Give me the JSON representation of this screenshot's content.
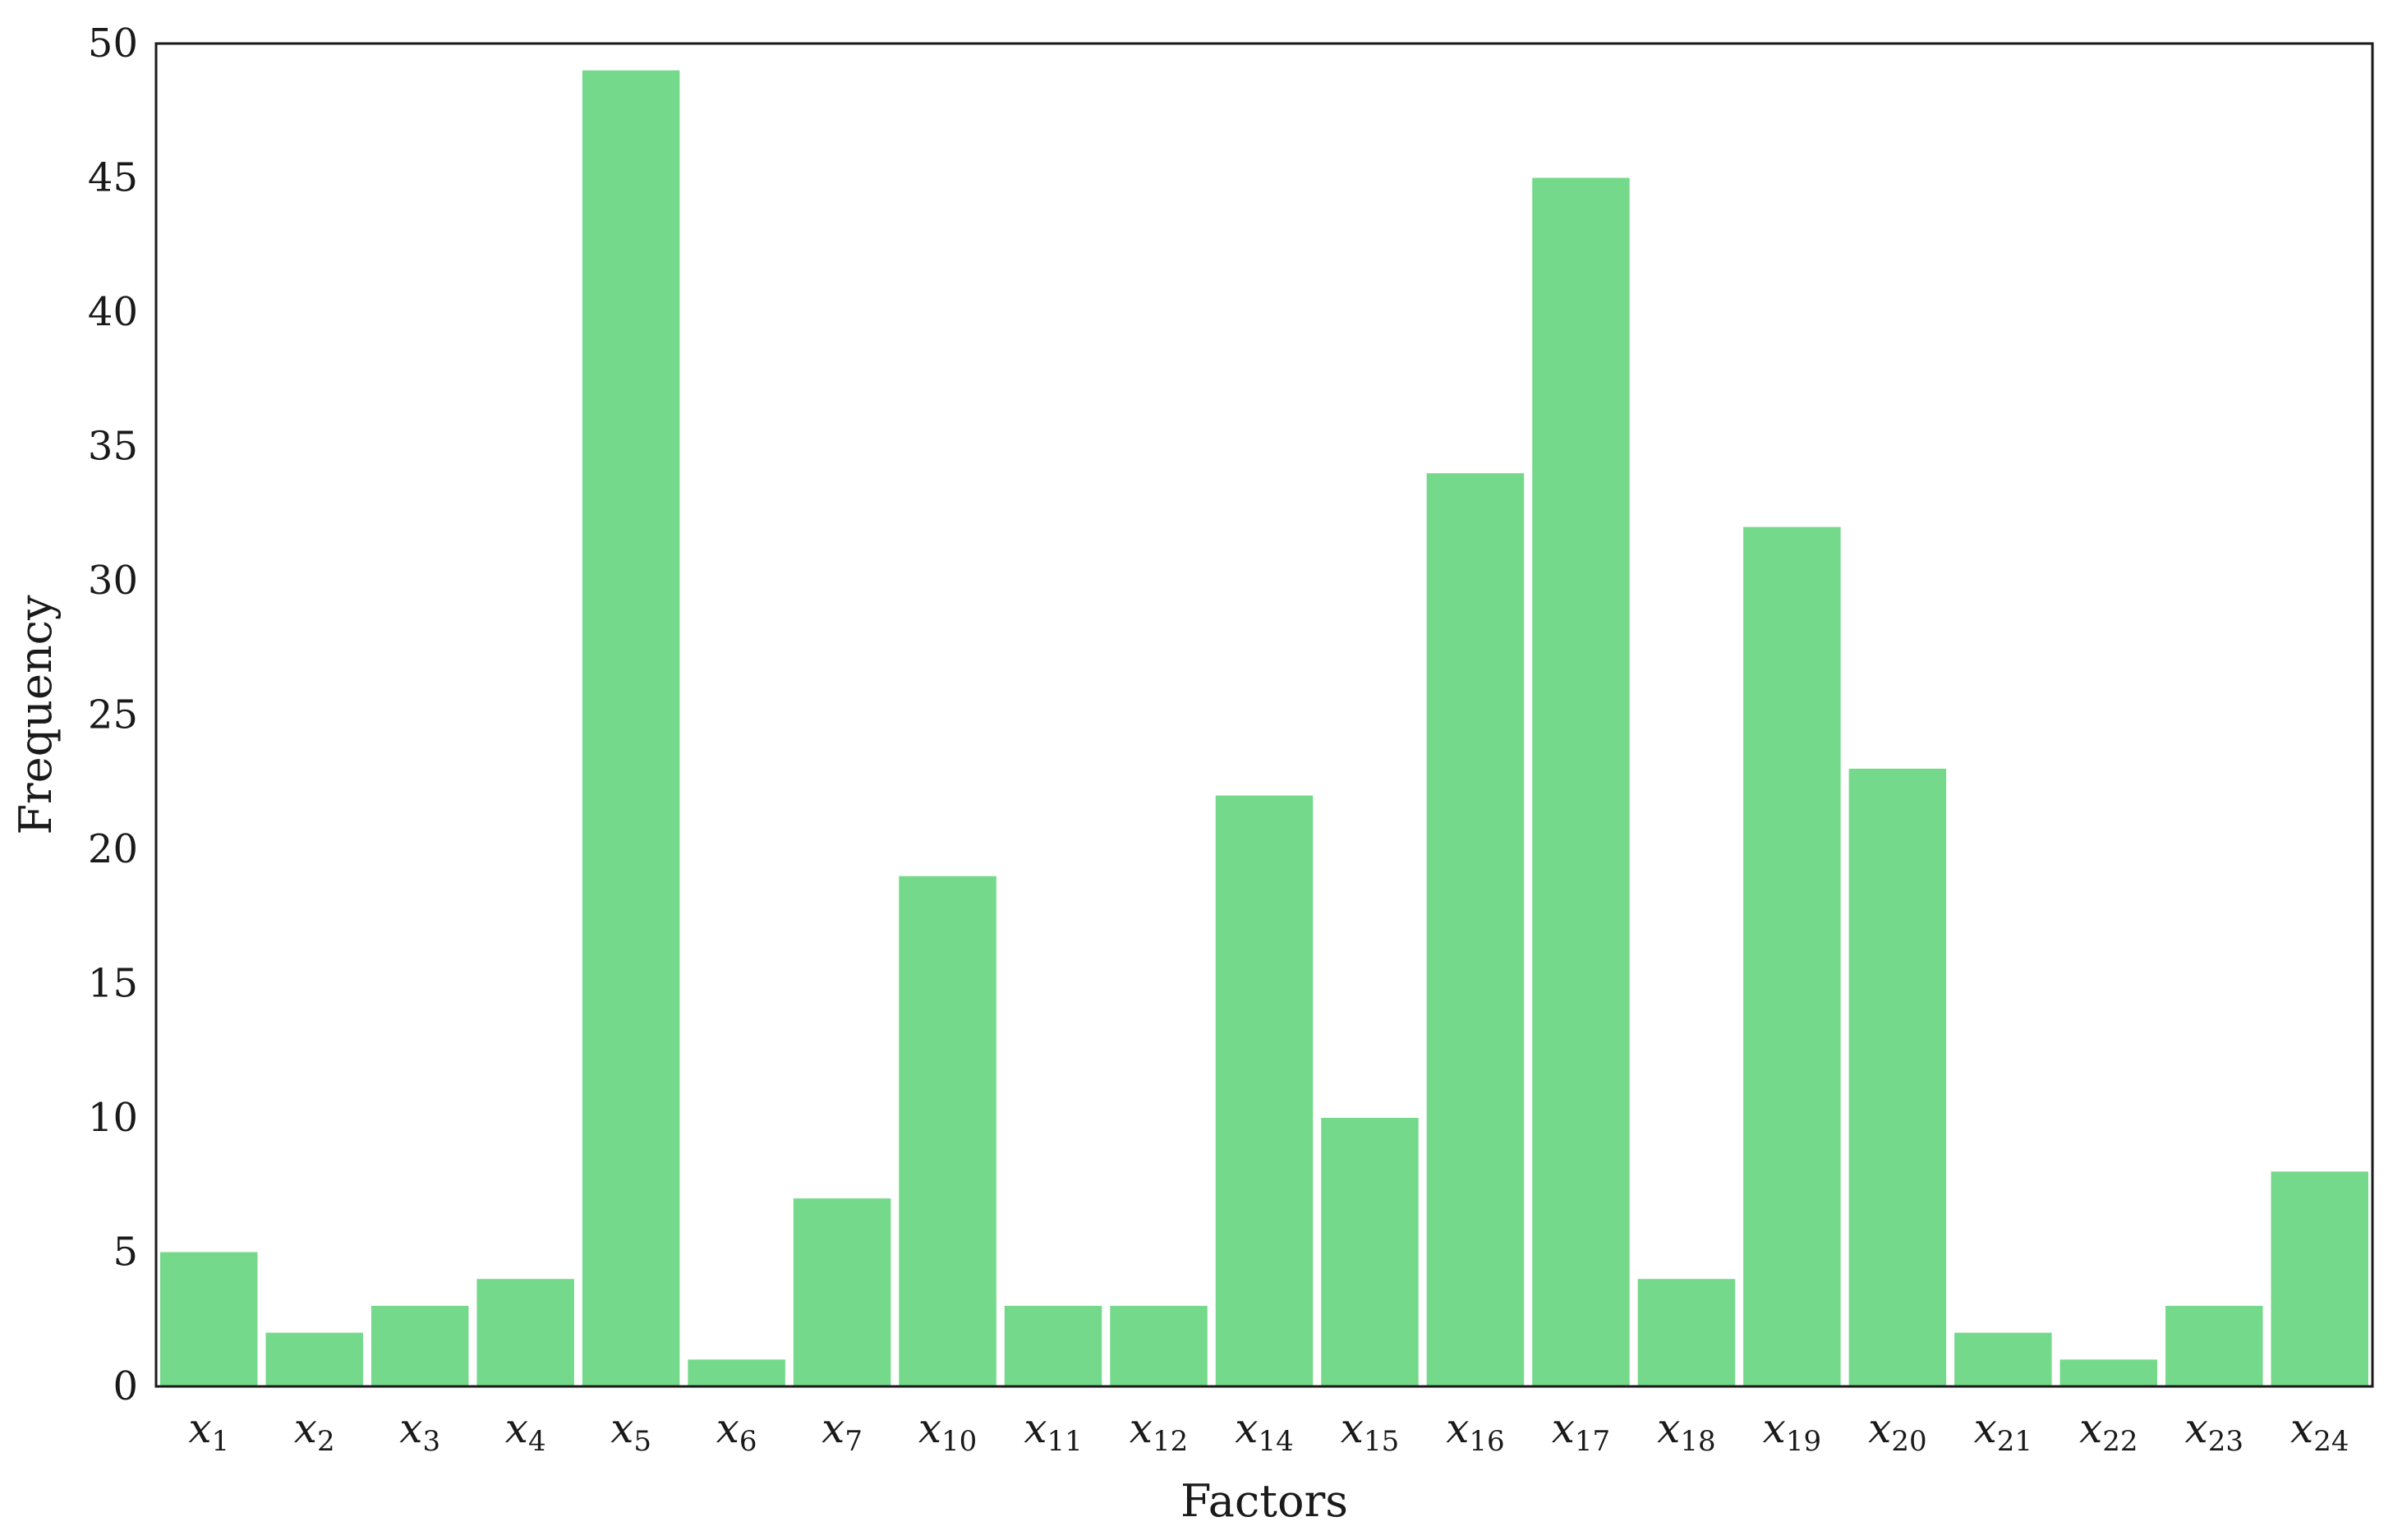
{
  "chart_data": {
    "type": "bar",
    "xlabel": "Factors",
    "ylabel": "Frequency",
    "ylim": [
      0,
      50
    ],
    "yticks": [
      0,
      5,
      10,
      15,
      20,
      25,
      30,
      35,
      40,
      45,
      50
    ],
    "grid": false,
    "bar_color": "#74d98a",
    "categories": [
      {
        "base": "x",
        "sub": "1"
      },
      {
        "base": "x",
        "sub": "2"
      },
      {
        "base": "x",
        "sub": "3"
      },
      {
        "base": "x",
        "sub": "4"
      },
      {
        "base": "x",
        "sub": "5"
      },
      {
        "base": "x",
        "sub": "6"
      },
      {
        "base": "x",
        "sub": "7"
      },
      {
        "base": "x",
        "sub": "10"
      },
      {
        "base": "x",
        "sub": "11"
      },
      {
        "base": "x",
        "sub": "12"
      },
      {
        "base": "x",
        "sub": "14"
      },
      {
        "base": "x",
        "sub": "15"
      },
      {
        "base": "x",
        "sub": "16"
      },
      {
        "base": "x",
        "sub": "17"
      },
      {
        "base": "x",
        "sub": "18"
      },
      {
        "base": "x",
        "sub": "19"
      },
      {
        "base": "x",
        "sub": "20"
      },
      {
        "base": "x",
        "sub": "21"
      },
      {
        "base": "x",
        "sub": "22"
      },
      {
        "base": "x",
        "sub": "23"
      },
      {
        "base": "x",
        "sub": "24"
      }
    ],
    "values": [
      5,
      2,
      3,
      4,
      49,
      1,
      7,
      19,
      3,
      3,
      22,
      10,
      34,
      45,
      4,
      32,
      23,
      2,
      1,
      3,
      8
    ]
  }
}
